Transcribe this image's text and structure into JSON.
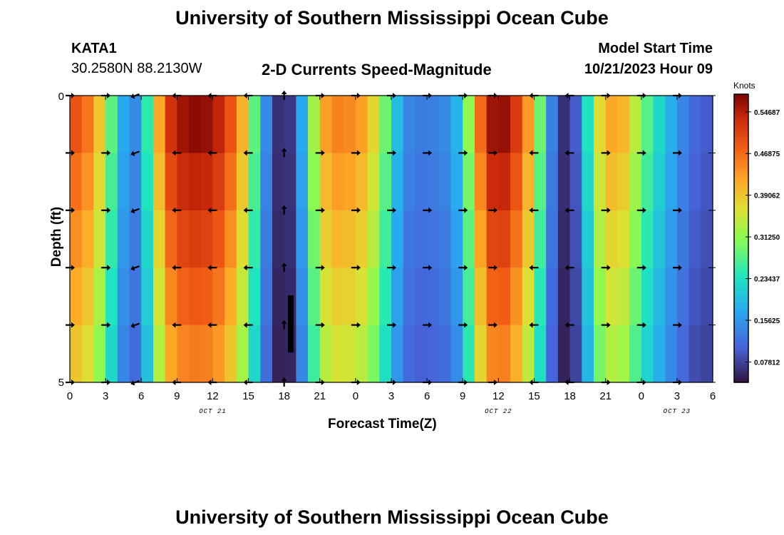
{
  "header": {
    "title": "University of Southern Mississippi Ocean Cube",
    "station": "KATA1",
    "coords": "30.2580N  88.2130W",
    "subtitle": "2-D Currents Speed-Magnitude",
    "model_start_label": "Model Start Time",
    "model_start_value": "10/21/2023 Hour 09"
  },
  "footer": {
    "title": "University of Southern Mississippi Ocean Cube"
  },
  "chart_data": {
    "type": "heatmap",
    "title": "2-D Currents Speed-Magnitude",
    "xlabel": "Forecast Time(Z)",
    "ylabel": "Depth (ft)",
    "units": "Knots",
    "x_hours_from_oct21_00": [
      0,
      54
    ],
    "x_tick_labels": [
      "0",
      "3",
      "6",
      "9",
      "12",
      "15",
      "18",
      "21",
      "0",
      "3",
      "6",
      "9",
      "12",
      "15",
      "18",
      "21",
      "0",
      "3",
      "6"
    ],
    "date_labels": [
      {
        "label": "OCT 21",
        "hour": 12
      },
      {
        "label": "OCT 22",
        "hour": 36
      },
      {
        "label": "OCT 23",
        "hour": 51
      }
    ],
    "y_range_ft": [
      0,
      5
    ],
    "y_tick_labels": [
      "0",
      "5"
    ],
    "colorbar": {
      "min": 0.04,
      "max": 0.58,
      "tick_values": [
        0.07812,
        0.15625,
        0.23437,
        0.3125,
        0.39062,
        0.46875,
        0.54687
      ],
      "tick_labels": [
        "0.07812",
        "0.15625",
        "0.23437",
        "0.31250",
        "0.39062",
        "0.46875",
        "0.54687"
      ]
    },
    "speed_profile": [
      {
        "hour": 0,
        "speed": 0.5
      },
      {
        "hour": 1,
        "speed": 0.48
      },
      {
        "hour": 2,
        "speed": 0.44
      },
      {
        "hour": 3,
        "speed": 0.34
      },
      {
        "hour": 4,
        "speed": 0.22
      },
      {
        "hour": 5,
        "speed": 0.13
      },
      {
        "hour": 6,
        "speed": 0.16
      },
      {
        "hour": 7,
        "speed": 0.34
      },
      {
        "hour": 8,
        "speed": 0.5
      },
      {
        "hour": 9,
        "speed": 0.55
      },
      {
        "hour": 10,
        "speed": 0.57
      },
      {
        "hour": 11,
        "speed": 0.57
      },
      {
        "hour": 12,
        "speed": 0.56
      },
      {
        "hour": 13,
        "speed": 0.52
      },
      {
        "hour": 14,
        "speed": 0.46
      },
      {
        "hour": 15,
        "speed": 0.36
      },
      {
        "hour": 16,
        "speed": 0.2
      },
      {
        "hour": 17,
        "speed": 0.09
      },
      {
        "hour": 18,
        "speed": 0.04
      },
      {
        "hour": 19,
        "speed": 0.1
      },
      {
        "hour": 20,
        "speed": 0.25
      },
      {
        "hour": 21,
        "speed": 0.4
      },
      {
        "hour": 22,
        "speed": 0.45
      },
      {
        "hour": 23,
        "speed": 0.45
      },
      {
        "hour": 24,
        "speed": 0.44
      },
      {
        "hour": 25,
        "speed": 0.41
      },
      {
        "hour": 26,
        "speed": 0.34
      },
      {
        "hour": 27,
        "speed": 0.24
      },
      {
        "hour": 28,
        "speed": 0.15
      },
      {
        "hour": 29,
        "speed": 0.13
      },
      {
        "hour": 30,
        "speed": 0.13
      },
      {
        "hour": 31,
        "speed": 0.14
      },
      {
        "hour": 32,
        "speed": 0.15
      },
      {
        "hour": 33,
        "speed": 0.22
      },
      {
        "hour": 34,
        "speed": 0.4
      },
      {
        "hour": 35,
        "speed": 0.54
      },
      {
        "hour": 36,
        "speed": 0.58
      },
      {
        "hour": 37,
        "speed": 0.55
      },
      {
        "hour": 38,
        "speed": 0.48
      },
      {
        "hour": 39,
        "speed": 0.38
      },
      {
        "hour": 40,
        "speed": 0.2
      },
      {
        "hour": 41,
        "speed": 0.07
      },
      {
        "hour": 42,
        "speed": 0.06
      },
      {
        "hour": 43,
        "speed": 0.14
      },
      {
        "hour": 44,
        "speed": 0.33
      },
      {
        "hour": 45,
        "speed": 0.41
      },
      {
        "hour": 46,
        "speed": 0.43
      },
      {
        "hour": 47,
        "speed": 0.38
      },
      {
        "hour": 48,
        "speed": 0.3
      },
      {
        "hour": 49,
        "speed": 0.25
      },
      {
        "hour": 50,
        "speed": 0.2
      },
      {
        "hour": 51,
        "speed": 0.16
      },
      {
        "hour": 52,
        "speed": 0.12
      },
      {
        "hour": 53,
        "speed": 0.1
      },
      {
        "hour": 54,
        "speed": 0.1
      }
    ],
    "arrow_depths_ft": [
      0,
      1,
      2,
      3,
      4,
      5
    ],
    "arrow_columns": [
      {
        "hour": 0,
        "dir_deg": 90
      },
      {
        "hour": 3,
        "dir_deg": 90
      },
      {
        "hour": 5.5,
        "dir_deg": 250
      },
      {
        "hour": 9,
        "dir_deg": 270
      },
      {
        "hour": 12,
        "dir_deg": 270
      },
      {
        "hour": 15,
        "dir_deg": 270
      },
      {
        "hour": 18,
        "dir_deg": 0
      },
      {
        "hour": 21,
        "dir_deg": 90
      },
      {
        "hour": 24,
        "dir_deg": 90
      },
      {
        "hour": 27,
        "dir_deg": 90
      },
      {
        "hour": 30,
        "dir_deg": 90
      },
      {
        "hour": 33,
        "dir_deg": 90
      },
      {
        "hour": 35.5,
        "dir_deg": 90
      },
      {
        "hour": 39,
        "dir_deg": 270
      },
      {
        "hour": 42,
        "dir_deg": 270
      },
      {
        "hour": 45,
        "dir_deg": 90
      },
      {
        "hour": 48,
        "dir_deg": 90
      },
      {
        "hour": 51,
        "dir_deg": 90
      }
    ]
  }
}
